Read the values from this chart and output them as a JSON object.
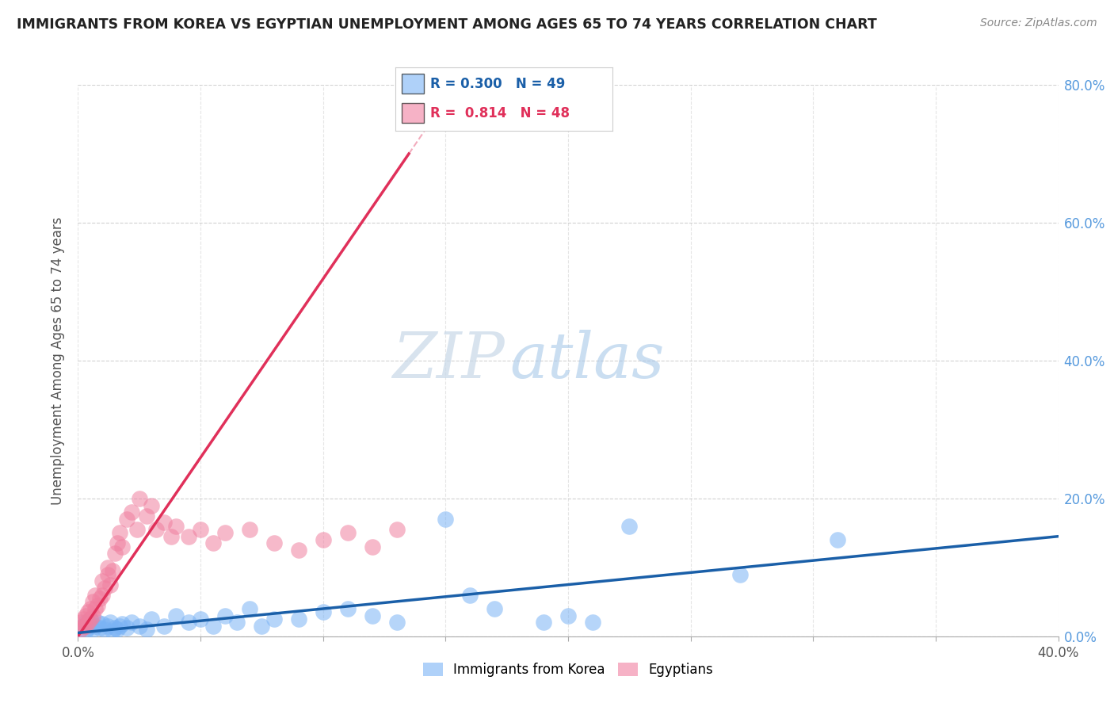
{
  "title": "IMMIGRANTS FROM KOREA VS EGYPTIAN UNEMPLOYMENT AMONG AGES 65 TO 74 YEARS CORRELATION CHART",
  "source": "Source: ZipAtlas.com",
  "xlabel_korea": "Immigrants from Korea",
  "xlabel_egypt": "Egyptians",
  "ylabel": "Unemployment Among Ages 65 to 74 years",
  "r_korea": 0.3,
  "n_korea": 49,
  "r_egypt": 0.814,
  "n_egypt": 48,
  "xlim": [
    0.0,
    0.4
  ],
  "ylim": [
    0.0,
    0.8
  ],
  "x_ticks": [
    0.0,
    0.05,
    0.1,
    0.15,
    0.2,
    0.25,
    0.3,
    0.35,
    0.4
  ],
  "y_ticks": [
    0.0,
    0.2,
    0.4,
    0.6,
    0.8
  ],
  "korea_color": "#7ab3f5",
  "egypt_color": "#f080a0",
  "korea_line_color": "#1a5fa8",
  "egypt_line_color": "#e0305a",
  "watermark_zip": "ZIP",
  "watermark_atlas": "atlas",
  "korea_x": [
    0.001,
    0.002,
    0.003,
    0.003,
    0.004,
    0.005,
    0.005,
    0.006,
    0.007,
    0.008,
    0.009,
    0.01,
    0.011,
    0.012,
    0.013,
    0.014,
    0.015,
    0.016,
    0.017,
    0.018,
    0.02,
    0.022,
    0.025,
    0.028,
    0.03,
    0.035,
    0.04,
    0.045,
    0.05,
    0.055,
    0.06,
    0.065,
    0.07,
    0.075,
    0.08,
    0.09,
    0.1,
    0.11,
    0.12,
    0.13,
    0.15,
    0.16,
    0.17,
    0.19,
    0.2,
    0.21,
    0.225,
    0.27,
    0.31
  ],
  "korea_y": [
    0.01,
    0.015,
    0.008,
    0.02,
    0.012,
    0.018,
    0.025,
    0.01,
    0.015,
    0.02,
    0.012,
    0.018,
    0.01,
    0.015,
    0.02,
    0.008,
    0.012,
    0.01,
    0.015,
    0.018,
    0.012,
    0.02,
    0.015,
    0.01,
    0.025,
    0.015,
    0.03,
    0.02,
    0.025,
    0.015,
    0.03,
    0.02,
    0.04,
    0.015,
    0.025,
    0.025,
    0.035,
    0.04,
    0.03,
    0.02,
    0.17,
    0.06,
    0.04,
    0.02,
    0.03,
    0.02,
    0.16,
    0.09,
    0.14
  ],
  "egypt_x": [
    0.001,
    0.001,
    0.002,
    0.002,
    0.003,
    0.003,
    0.004,
    0.004,
    0.005,
    0.005,
    0.006,
    0.006,
    0.007,
    0.007,
    0.008,
    0.009,
    0.01,
    0.01,
    0.011,
    0.012,
    0.012,
    0.013,
    0.014,
    0.015,
    0.016,
    0.017,
    0.018,
    0.02,
    0.022,
    0.024,
    0.025,
    0.028,
    0.03,
    0.032,
    0.035,
    0.038,
    0.04,
    0.045,
    0.05,
    0.055,
    0.06,
    0.07,
    0.08,
    0.09,
    0.1,
    0.11,
    0.12,
    0.13
  ],
  "egypt_y": [
    0.01,
    0.02,
    0.015,
    0.025,
    0.015,
    0.03,
    0.02,
    0.035,
    0.025,
    0.04,
    0.03,
    0.05,
    0.04,
    0.06,
    0.045,
    0.055,
    0.06,
    0.08,
    0.07,
    0.09,
    0.1,
    0.075,
    0.095,
    0.12,
    0.135,
    0.15,
    0.13,
    0.17,
    0.18,
    0.155,
    0.2,
    0.175,
    0.19,
    0.155,
    0.165,
    0.145,
    0.16,
    0.145,
    0.155,
    0.135,
    0.15,
    0.155,
    0.135,
    0.125,
    0.14,
    0.15,
    0.13,
    0.155
  ],
  "egypt_line_x0": 0.0,
  "egypt_line_y0": 0.0,
  "egypt_line_x1": 0.135,
  "egypt_line_y1": 0.7,
  "korea_line_x0": 0.0,
  "korea_line_y0": 0.005,
  "korea_line_x1": 0.4,
  "korea_line_y1": 0.145
}
